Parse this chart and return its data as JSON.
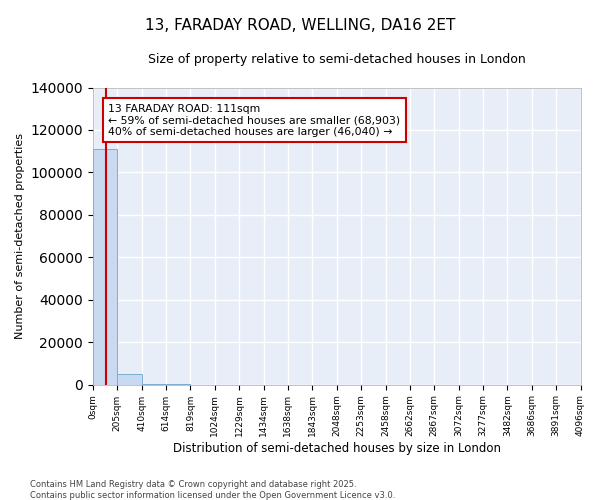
{
  "title": "13, FARADAY ROAD, WELLING, DA16 2ET",
  "subtitle": "Size of property relative to semi-detached houses in London",
  "xlabel": "Distribution of semi-detached houses by size in London",
  "ylabel": "Number of semi-detached properties",
  "bin_edges": [
    0,
    205,
    410,
    614,
    819,
    1024,
    1229,
    1434,
    1638,
    1843,
    2048,
    2253,
    2458,
    2662,
    2867,
    3072,
    3277,
    3482,
    3686,
    3891,
    4096
  ],
  "bin_heights": [
    111000,
    5000,
    200,
    70,
    30,
    15,
    10,
    6,
    4,
    3,
    2,
    2,
    1,
    1,
    1,
    1,
    1,
    1,
    1,
    1
  ],
  "bar_color": "#c8d9f0",
  "bar_edge_color": "#7badd4",
  "red_line_x": 111,
  "red_line_color": "#cc0000",
  "annotation_text": "13 FARADAY ROAD: 111sqm\n← 59% of semi-detached houses are smaller (68,903)\n40% of semi-detached houses are larger (46,040) →",
  "annotation_box_color": "white",
  "annotation_box_edge_color": "#cc0000",
  "ylim": [
    0,
    140000
  ],
  "yticks": [
    0,
    20000,
    40000,
    60000,
    80000,
    100000,
    120000,
    140000
  ],
  "footnote": "Contains HM Land Registry data © Crown copyright and database right 2025.\nContains public sector information licensed under the Open Government Licence v3.0.",
  "background_color": "#e8eef8",
  "grid_color": "white",
  "fig_background": "white"
}
